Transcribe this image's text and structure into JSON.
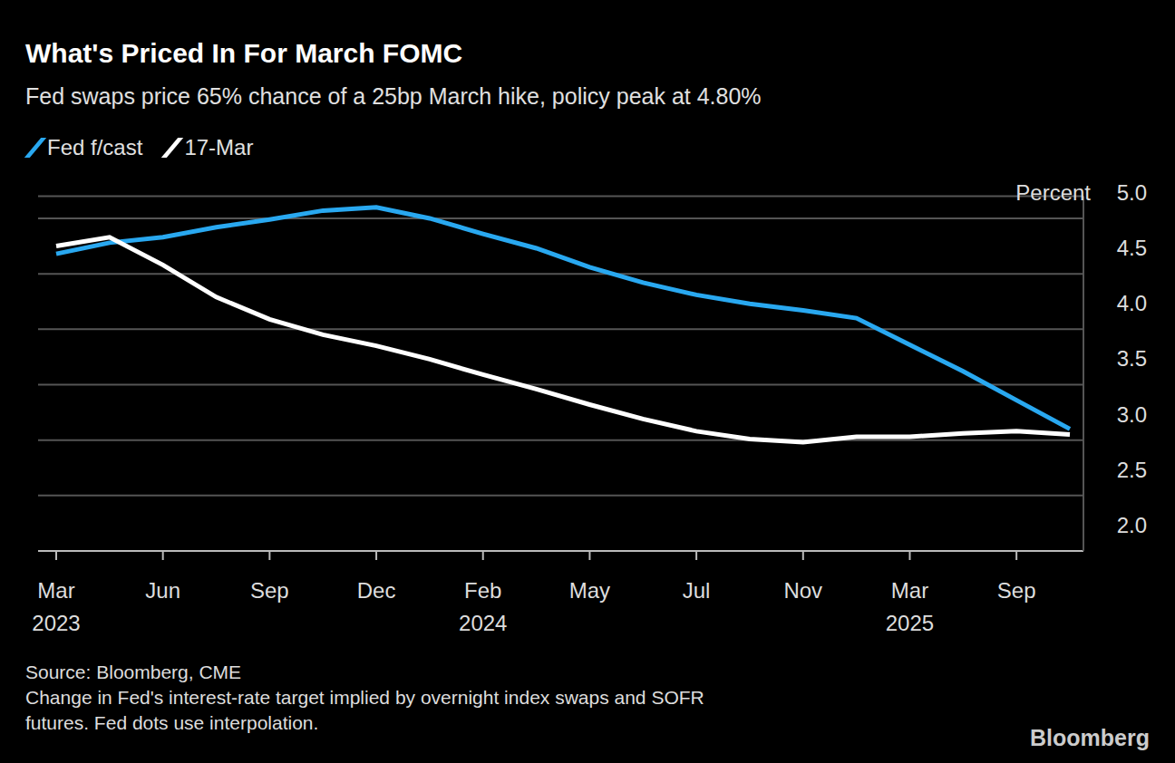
{
  "chart_data": {
    "type": "line",
    "title": "What's Priced In For March FOMC",
    "subtitle": "Fed swaps price 65% chance of a 25bp March hike, policy peak at 4.80%",
    "categories": [
      "Mar 2023",
      null,
      "Jun",
      null,
      "Sep",
      null,
      "Dec",
      null,
      "Feb 2024",
      null,
      "May",
      null,
      "Jul",
      null,
      "Nov",
      null,
      "Mar 2025",
      null,
      "Sep",
      null
    ],
    "series": [
      {
        "name": "Fed f/cast",
        "color": "#29a8f0",
        "values": [
          4.68,
          4.78,
          4.83,
          4.92,
          4.99,
          5.07,
          5.1,
          5.0,
          4.86,
          4.73,
          4.56,
          4.42,
          4.31,
          4.23,
          4.17,
          4.1,
          3.86,
          3.62,
          3.36,
          3.1
        ]
      },
      {
        "name": "17-Mar",
        "color": "#ffffff",
        "values": [
          4.75,
          4.83,
          4.58,
          4.29,
          4.09,
          3.95,
          3.85,
          3.73,
          3.59,
          3.46,
          3.32,
          3.19,
          3.08,
          3.01,
          2.98,
          3.03,
          3.03,
          3.06,
          3.08,
          3.05
        ]
      }
    ],
    "ylabel": "Percent",
    "ylim": [
      2.0,
      5.2
    ],
    "yticks": [
      {
        "value": 2,
        "label": "2.0"
      },
      2.5,
      {
        "value": 3,
        "label": "3.0"
      },
      3.5,
      {
        "value": 4,
        "label": "4.0"
      },
      4.5,
      {
        "value": 5,
        "label": "5.0"
      }
    ],
    "grid": true,
    "legend": "top left",
    "source": "Source: Bloomberg, CME",
    "notes": [
      "Change in Fed's interest-rate target implied by overnight index swaps and SOFR",
      "futures. Fed dots use interpolation."
    ],
    "credit": "Bloomberg"
  }
}
